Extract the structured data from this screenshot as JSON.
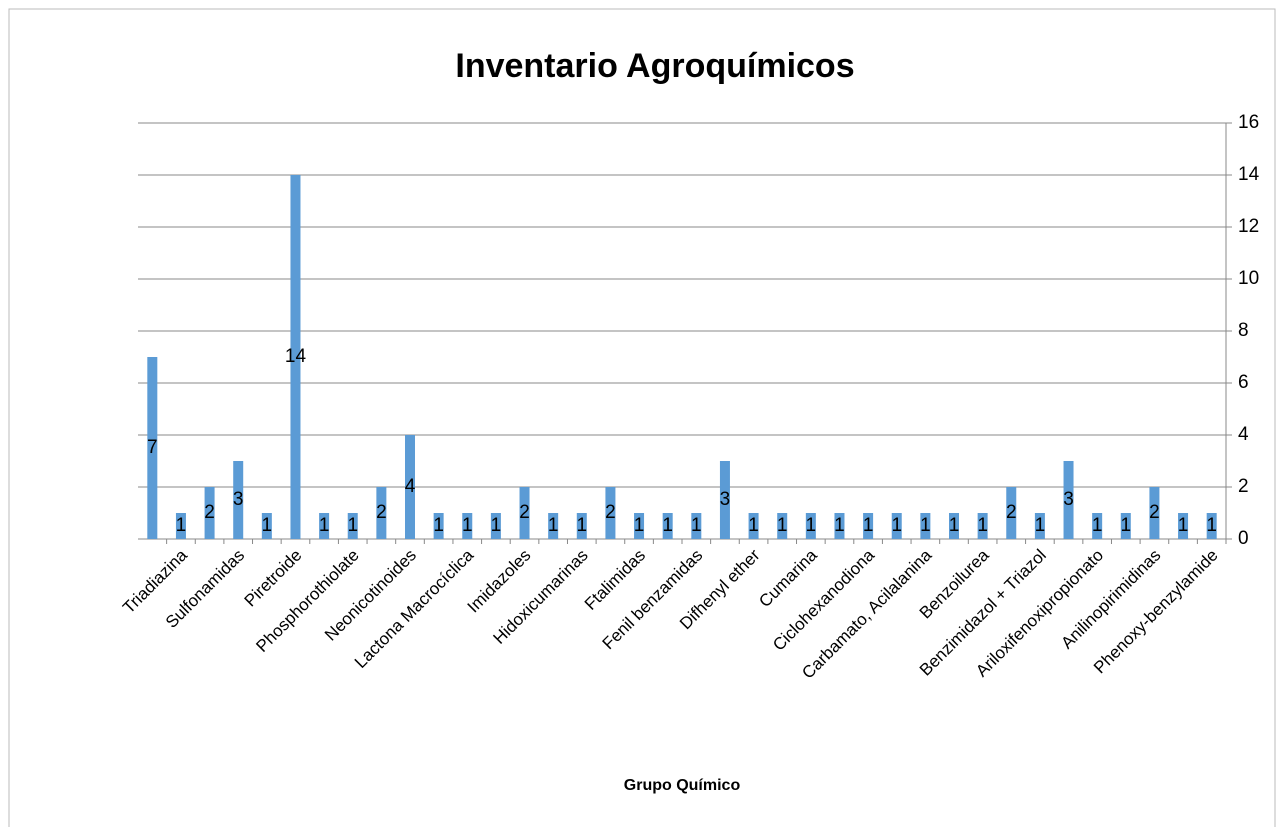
{
  "chart_data": {
    "type": "bar",
    "title": "Inventario Agroquímicos",
    "x_label": "Grupo Químico",
    "categories": [
      null,
      "Triadiazina",
      null,
      "Sulfonamidas",
      null,
      "Piretroide",
      null,
      "Phosphorothiolate",
      null,
      "Neonicotinoides",
      null,
      "Lactona Macrocíclica",
      null,
      "Imidazoles",
      null,
      "Hidoxicumarinas",
      null,
      "Ftalimidas",
      null,
      "Fenil benzamidas",
      null,
      "Difhenyl ether",
      null,
      "Cumarina",
      null,
      "Ciclohexanodiona",
      null,
      "Carbamato, Acilalanina",
      null,
      "Benzoilurea",
      null,
      "Benzimidazol + Triazol",
      null,
      "Ariloxifenoxipropionato",
      null,
      "Anilinopirimidinas",
      null,
      "Phenoxy-benzylamide"
    ],
    "values": [
      7,
      1,
      2,
      3,
      1,
      14,
      1,
      1,
      2,
      4,
      1,
      1,
      1,
      2,
      1,
      1,
      2,
      1,
      1,
      1,
      3,
      1,
      1,
      1,
      1,
      1,
      1,
      1,
      1,
      1,
      2,
      1,
      3,
      1,
      1,
      2,
      1,
      1
    ],
    "color": "#5b9bd5",
    "ylim": [
      0,
      16
    ],
    "yticks": [
      0,
      2,
      4,
      6,
      8,
      10,
      12,
      14,
      16
    ],
    "y_axis_side": "right",
    "grid": true
  }
}
